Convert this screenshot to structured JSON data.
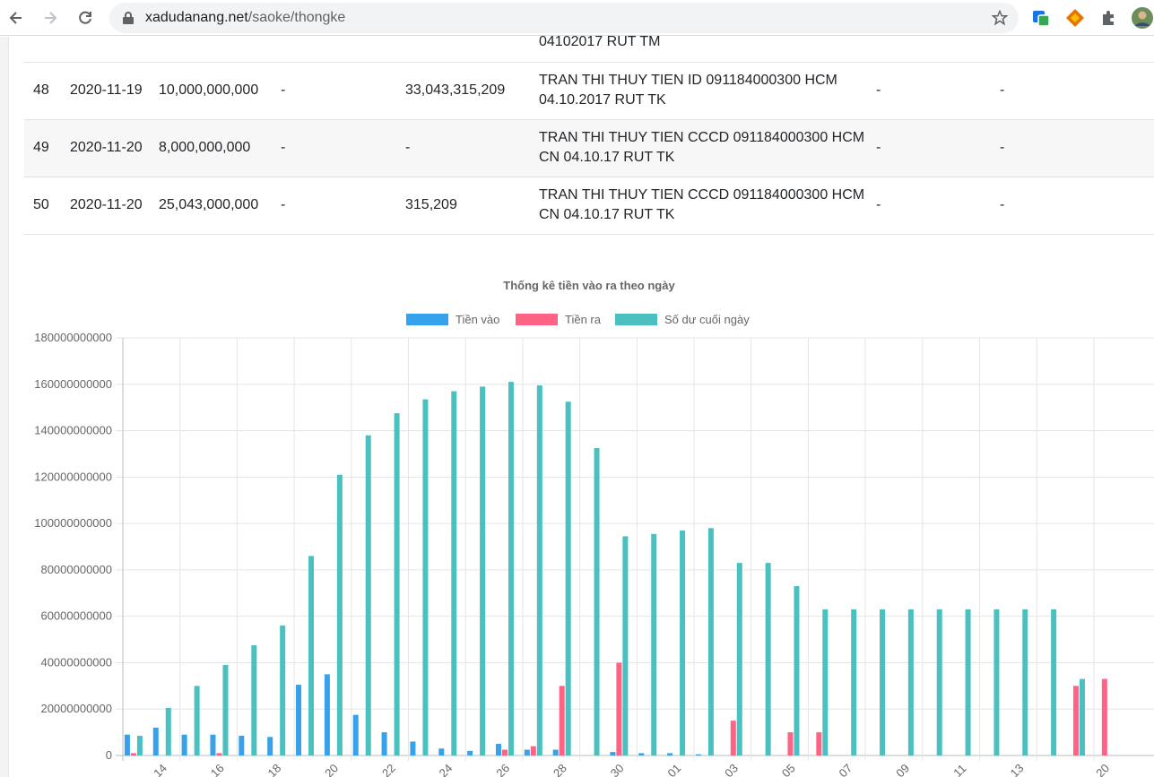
{
  "browser": {
    "url_domain": "xadudanang.net",
    "url_path": "/saoke/thongke"
  },
  "table": {
    "partial_row": {
      "desc": "04102017 RUT TM"
    },
    "rows": [
      {
        "no": "48",
        "date": "2020-11-19",
        "in": "10,000,000,000",
        "out": "-",
        "balance": "33,043,315,209",
        "desc_line1": "TRAN THI THUY TIEN ID 091184000300 HCM",
        "desc_line2": "04.10.2017 RUT TK",
        "col_a": "-",
        "col_b": "-"
      },
      {
        "no": "49",
        "date": "2020-11-20",
        "in": "8,000,000,000",
        "out": "-",
        "balance": "-",
        "desc_line1": "TRAN THI THUY TIEN CCCD 091184000300 HCM",
        "desc_line2": "CN 04.10.17 RUT TK",
        "col_a": "-",
        "col_b": "-"
      },
      {
        "no": "50",
        "date": "2020-11-20",
        "in": "25,043,000,000",
        "out": "-",
        "balance": "315,209",
        "desc_line1": "TRAN THI THUY TIEN CCCD 091184000300 HCM",
        "desc_line2": "CN 04.10.17 RUT TK",
        "col_a": "-",
        "col_b": "-"
      }
    ]
  },
  "chart_data": {
    "type": "bar",
    "title": "Thống kê tiền vào ra theo ngày",
    "legend_position": "top",
    "grid": true,
    "ylim": [
      0,
      180000000000
    ],
    "yticks": [
      "0",
      "20000000000",
      "40000000000",
      "60000000000",
      "80000000000",
      "100000000000",
      "120000000000",
      "140000000000",
      "160000000000",
      "180000000000"
    ],
    "xtick_labels": [
      {
        "label": "14",
        "index": 1
      },
      {
        "label": "16",
        "index": 3
      },
      {
        "label": "18",
        "index": 5
      },
      {
        "label": "20",
        "index": 7
      },
      {
        "label": "22",
        "index": 9
      },
      {
        "label": "24",
        "index": 11
      },
      {
        "label": "26",
        "index": 13
      },
      {
        "label": "28",
        "index": 15
      },
      {
        "label": "30",
        "index": 17
      },
      {
        "label": "01",
        "index": 19
      },
      {
        "label": "03",
        "index": 21
      },
      {
        "label": "05",
        "index": 23
      },
      {
        "label": "07",
        "index": 25
      },
      {
        "label": "09",
        "index": 27
      },
      {
        "label": "11",
        "index": 29
      },
      {
        "label": "13",
        "index": 31
      },
      {
        "label": "20",
        "index": 34
      }
    ],
    "category_count": 35,
    "series": [
      {
        "name": "Tiền vào",
        "color": "#36a2eb",
        "values": [
          9000000000,
          12000000000,
          9000000000,
          9000000000,
          8500000000,
          8000000000,
          30500000000,
          35000000000,
          17500000000,
          10000000000,
          6000000000,
          3000000000,
          2000000000,
          5000000000,
          2500000000,
          2500000000,
          0,
          1500000000,
          1000000000,
          1000000000,
          500000000,
          0,
          0,
          0,
          0,
          0,
          0,
          0,
          0,
          0,
          0,
          0,
          0,
          0,
          0
        ]
      },
      {
        "name": "Tiền ra",
        "color": "#ff6384",
        "values": [
          1000000000,
          0,
          0,
          1000000000,
          0,
          0,
          0,
          0,
          0,
          0,
          0,
          0,
          0,
          2500000000,
          4000000000,
          30000000000,
          0,
          40000000000,
          0,
          0,
          0,
          15000000000,
          0,
          10000000000,
          10000000000,
          0,
          0,
          0,
          0,
          0,
          0,
          0,
          0,
          30000000000,
          33000000000
        ]
      },
      {
        "name": "Số dư cuối ngày",
        "color": "#4bc0c0",
        "values": [
          8500000000,
          20500000000,
          30000000000,
          39000000000,
          47500000000,
          56000000000,
          86000000000,
          121000000000,
          138000000000,
          147500000000,
          153500000000,
          157000000000,
          159000000000,
          161000000000,
          159500000000,
          152500000000,
          132500000000,
          94500000000,
          95500000000,
          97000000000,
          98000000000,
          83000000000,
          83000000000,
          73000000000,
          63000000000,
          63000000000,
          63000000000,
          63000000000,
          63000000000,
          63000000000,
          63000000000,
          63000000000,
          63000000000,
          33000000000,
          0
        ]
      }
    ]
  }
}
